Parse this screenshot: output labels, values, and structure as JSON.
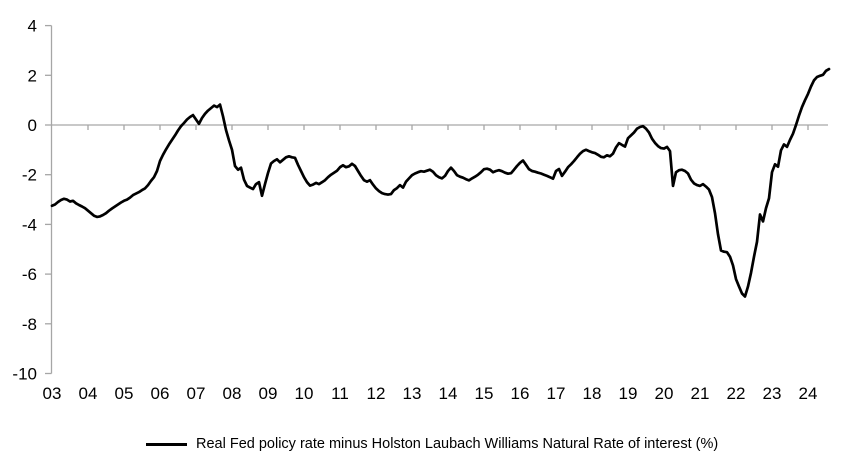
{
  "chart_data": {
    "type": "line",
    "title": "",
    "xlabel": "",
    "ylabel": "",
    "ylim": [
      -10,
      4
    ],
    "xlim_years": [
      2003.0,
      2024.6
    ],
    "y_ticks": [
      4,
      2,
      0,
      -2,
      -4,
      -6,
      -8,
      -10
    ],
    "x_tick_labels": [
      "03",
      "04",
      "05",
      "06",
      "07",
      "08",
      "09",
      "10",
      "11",
      "12",
      "13",
      "14",
      "15",
      "16",
      "17",
      "18",
      "19",
      "20",
      "21",
      "22",
      "23",
      "24"
    ],
    "grid": false,
    "zero_line": true,
    "legend_position": "bottom-center",
    "colors": {
      "series": "#000000",
      "axis": "#a6a6a6",
      "text": "#000000",
      "background": "#ffffff"
    },
    "series": [
      {
        "name": "Real Fed policy rate minus Holston Laubach Williams Natural Rate of interest (%)",
        "x_start_year": 2003,
        "x_step_years": 0.0833333,
        "values": [
          -3.25,
          -3.2,
          -3.1,
          -3.02,
          -2.97,
          -3.0,
          -3.08,
          -3.05,
          -3.15,
          -3.22,
          -3.28,
          -3.35,
          -3.45,
          -3.55,
          -3.65,
          -3.7,
          -3.68,
          -3.62,
          -3.55,
          -3.45,
          -3.36,
          -3.28,
          -3.2,
          -3.12,
          -3.05,
          -3.0,
          -2.92,
          -2.82,
          -2.76,
          -2.7,
          -2.62,
          -2.55,
          -2.42,
          -2.25,
          -2.1,
          -1.85,
          -1.45,
          -1.2,
          -0.98,
          -0.78,
          -0.6,
          -0.42,
          -0.22,
          -0.05,
          0.08,
          0.22,
          0.32,
          0.4,
          0.22,
          0.05,
          0.28,
          0.45,
          0.58,
          0.68,
          0.78,
          0.72,
          0.82,
          0.35,
          -0.2,
          -0.62,
          -1.0,
          -1.65,
          -1.8,
          -1.72,
          -2.2,
          -2.45,
          -2.52,
          -2.58,
          -2.38,
          -2.3,
          -2.85,
          -2.38,
          -1.93,
          -1.55,
          -1.45,
          -1.38,
          -1.5,
          -1.4,
          -1.3,
          -1.26,
          -1.3,
          -1.32,
          -1.6,
          -1.85,
          -2.1,
          -2.3,
          -2.44,
          -2.4,
          -2.33,
          -2.38,
          -2.3,
          -2.22,
          -2.1,
          -2.0,
          -1.92,
          -1.84,
          -1.7,
          -1.62,
          -1.7,
          -1.66,
          -1.56,
          -1.65,
          -1.85,
          -2.05,
          -2.22,
          -2.28,
          -2.22,
          -2.4,
          -2.55,
          -2.66,
          -2.74,
          -2.78,
          -2.8,
          -2.78,
          -2.62,
          -2.54,
          -2.42,
          -2.52,
          -2.28,
          -2.15,
          -2.02,
          -1.95,
          -1.9,
          -1.86,
          -1.88,
          -1.84,
          -1.8,
          -1.88,
          -2.02,
          -2.1,
          -2.15,
          -2.05,
          -1.85,
          -1.72,
          -1.85,
          -2.02,
          -2.08,
          -2.12,
          -2.18,
          -2.23,
          -2.15,
          -2.08,
          -2.0,
          -1.9,
          -1.78,
          -1.76,
          -1.8,
          -1.9,
          -1.85,
          -1.82,
          -1.86,
          -1.92,
          -1.96,
          -1.94,
          -1.8,
          -1.65,
          -1.52,
          -1.43,
          -1.6,
          -1.78,
          -1.85,
          -1.88,
          -1.92,
          -1.95,
          -2.0,
          -2.05,
          -2.1,
          -2.16,
          -1.85,
          -1.77,
          -2.05,
          -1.88,
          -1.7,
          -1.58,
          -1.45,
          -1.3,
          -1.16,
          -1.05,
          -1.0,
          -1.05,
          -1.1,
          -1.13,
          -1.2,
          -1.28,
          -1.3,
          -1.22,
          -1.26,
          -1.15,
          -0.9,
          -0.73,
          -0.8,
          -0.87,
          -0.53,
          -0.42,
          -0.3,
          -0.15,
          -0.08,
          -0.05,
          -0.15,
          -0.3,
          -0.55,
          -0.72,
          -0.85,
          -0.93,
          -0.95,
          -0.88,
          -1.05,
          -2.45,
          -1.9,
          -1.82,
          -1.8,
          -1.85,
          -1.95,
          -2.2,
          -2.35,
          -2.42,
          -2.45,
          -2.38,
          -2.48,
          -2.6,
          -2.9,
          -3.55,
          -4.4,
          -5.05,
          -5.1,
          -5.12,
          -5.3,
          -5.65,
          -6.2,
          -6.5,
          -6.78,
          -6.9,
          -6.5,
          -5.95,
          -5.3,
          -4.7,
          -3.6,
          -3.88,
          -3.35,
          -2.95,
          -1.9,
          -1.58,
          -1.68,
          -1.02,
          -0.78,
          -0.88,
          -0.6,
          -0.35,
          0.0,
          0.38,
          0.72,
          1.0,
          1.25,
          1.55,
          1.8,
          1.93,
          1.98,
          2.02,
          2.18,
          2.25
        ]
      }
    ]
  },
  "legend": {
    "series_label": "Real Fed policy rate minus Holston Laubach Williams Natural Rate of interest (%)"
  }
}
